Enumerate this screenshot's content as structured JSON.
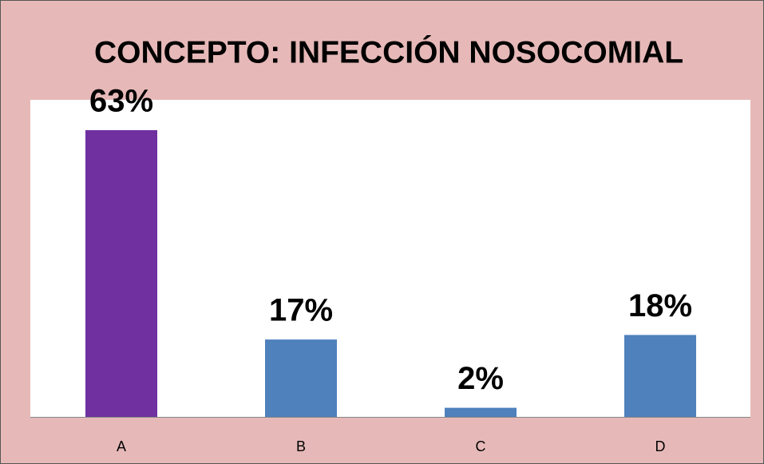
{
  "chart_data": {
    "type": "bar",
    "title": "CONCEPTO: INFECCIÓN NOSOCOMIAL",
    "categories": [
      "A",
      "B",
      "C",
      "D"
    ],
    "values": [
      63,
      17,
      2,
      18
    ],
    "value_labels": [
      "63%",
      "17%",
      "2%",
      "18%"
    ],
    "colors": [
      "#7030a0",
      "#4f81bd",
      "#4f81bd",
      "#4f81bd"
    ]
  }
}
